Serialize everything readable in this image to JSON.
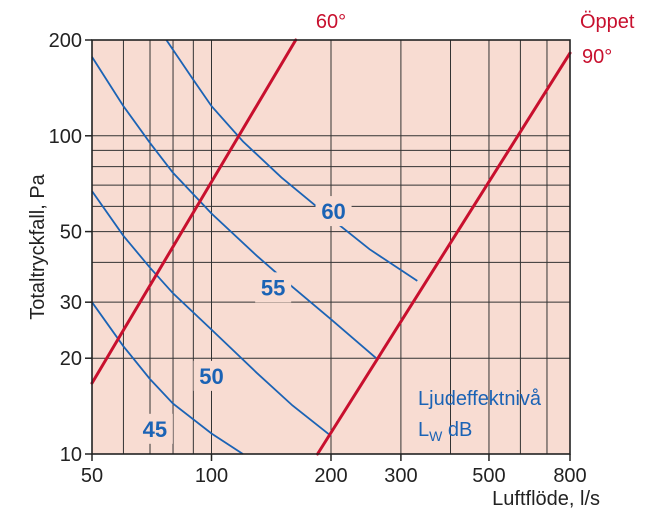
{
  "chart_data": {
    "type": "line",
    "xlabel": "Luftflöde, l/s",
    "ylabel": "Totaltryckfall, Pa",
    "xscale": "log",
    "yscale": "log",
    "xlim": [
      50,
      800
    ],
    "ylim": [
      10,
      200
    ],
    "xticks": [
      {
        "value": 50,
        "label": "50"
      },
      {
        "value": 100,
        "label": "100"
      },
      {
        "value": 200,
        "label": "200"
      },
      {
        "value": 300,
        "label": "300"
      },
      {
        "value": 500,
        "label": "500"
      },
      {
        "value": 800,
        "label": "800"
      }
    ],
    "yticks": [
      {
        "value": 10,
        "label": "10"
      },
      {
        "value": 20,
        "label": "20"
      },
      {
        "value": 30,
        "label": "30"
      },
      {
        "value": 50,
        "label": "50"
      },
      {
        "value": 100,
        "label": "100"
      },
      {
        "value": 200,
        "label": "200"
      }
    ],
    "xgrid": [
      60,
      70,
      80,
      90,
      100,
      200,
      300,
      400,
      500,
      600,
      700
    ],
    "ygrid": [
      20,
      30,
      40,
      50,
      60,
      70,
      80,
      90,
      100
    ],
    "background": "#f8dcd2",
    "series": [
      {
        "name": "60°",
        "color": "#c8102e",
        "x": [
          50,
          163
        ],
        "y": [
          16.7,
          200
        ]
      },
      {
        "name": "Öppet\n90°",
        "color": "#c8102e",
        "x": [
          185,
          800
        ],
        "y": [
          10,
          182
        ]
      }
    ],
    "curves": [
      {
        "label": "45",
        "color": "#1b63b5",
        "x": [
          50,
          60,
          70,
          80,
          100,
          120
        ],
        "y": [
          30,
          21.8,
          17.2,
          14.4,
          11.6,
          10
        ]
      },
      {
        "label": "50",
        "color": "#1b63b5",
        "x": [
          50,
          60,
          70,
          80,
          100,
          130,
          160,
          200
        ],
        "y": [
          67,
          48.5,
          38.5,
          32,
          24.6,
          18,
          14.2,
          11.4
        ]
      },
      {
        "label": "55",
        "color": "#1b63b5",
        "x": [
          50,
          60,
          70,
          80,
          100,
          130,
          160,
          200,
          260
        ],
        "y": [
          177,
          124,
          95,
          76.5,
          57,
          42,
          33.5,
          26.5,
          20
        ]
      },
      {
        "label": "60",
        "color": "#1b63b5",
        "x": [
          77,
          90,
          100,
          120,
          150,
          200,
          250,
          330
        ],
        "y": [
          200,
          150,
          124,
          96,
          74,
          55,
          44,
          35
        ]
      }
    ],
    "curve_label_positions": [
      {
        "label": "45",
        "x": 72,
        "y": 12
      },
      {
        "label": "50",
        "x": 100,
        "y": 17.6
      },
      {
        "label": "55",
        "x": 143,
        "y": 33.4
      },
      {
        "label": "60",
        "x": 203,
        "y": 58
      }
    ],
    "legend": {
      "line1": "Ljudeffektnivå",
      "line2_main": "L",
      "line2_sub": "W",
      "line2_rest": " dB",
      "position": "bottom-right"
    },
    "red_labels": {
      "sixty": "60°",
      "open_line1": "Öppet",
      "open_line2": "90°"
    }
  }
}
